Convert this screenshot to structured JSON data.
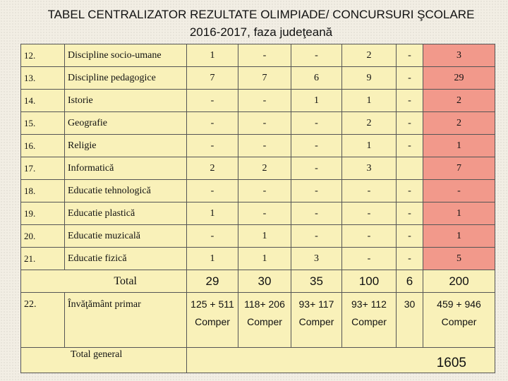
{
  "title": {
    "line1": "TABEL CENTRALIZATOR REZULTATE OLIMPIADE/ CONCURSURI ŞCOLARE",
    "line2": "2016-2017, faza judeţeană"
  },
  "rows": [
    {
      "num": "12.",
      "name": "Discipline socio-umane",
      "c1": "1",
      "c2": "-",
      "c3": "-",
      "c4": "2",
      "c5": "-",
      "c6": "3"
    },
    {
      "num": "13.",
      "name": "Discipline pedagogice",
      "c1": "7",
      "c2": "7",
      "c3": "6",
      "c4": "9",
      "c5": "-",
      "c6": "29"
    },
    {
      "num": "14.",
      "name": "Istorie",
      "c1": "-",
      "c2": "-",
      "c3": "1",
      "c4": "1",
      "c5": "-",
      "c6": "2"
    },
    {
      "num": "15.",
      "name": "Geografie",
      "c1": "-",
      "c2": "-",
      "c3": "-",
      "c4": "2",
      "c5": "-",
      "c6": "2"
    },
    {
      "num": "16.",
      "name": "Religie",
      "c1": "-",
      "c2": "-",
      "c3": "-",
      "c4": "1",
      "c5": "-",
      "c6": "1"
    },
    {
      "num": "17.",
      "name": "Informatică",
      "c1": "2",
      "c2": "2",
      "c3": "-",
      "c4": "3",
      "c5": "",
      "c6": "7"
    },
    {
      "num": "18.",
      "name": "Educatie tehnologică",
      "c1": "-",
      "c2": "-",
      "c3": "-",
      "c4": "-",
      "c5": "-",
      "c6": "-"
    },
    {
      "num": "19.",
      "name": "Educatie plastică",
      "c1": "1",
      "c2": "-",
      "c3": "-",
      "c4": "-",
      "c5": "-",
      "c6": "1"
    },
    {
      "num": "20.",
      "name": "Educatie muzicală",
      "c1": "-",
      "c2": "1",
      "c3": "-",
      "c4": "-",
      "c5": "-",
      "c6": "1"
    },
    {
      "num": "21.",
      "name": "Educatie fizică",
      "c1": "1",
      "c2": "1",
      "c3": "3",
      "c4": "-",
      "c5": "-",
      "c6": "5"
    }
  ],
  "total": {
    "label": "Total",
    "c1": "29",
    "c2": "30",
    "c3": "35",
    "c4": "100",
    "c5": "6",
    "c6": "200"
  },
  "primar": {
    "num": "22.",
    "name": "Învăţământ primar",
    "c1": "125 + 511 Comper",
    "c2": "118+ 206 Comper",
    "c3": "93+ 117 Comper",
    "c4": "93+ 112 Comper",
    "c5": "30",
    "c6": "459 + 946 Comper"
  },
  "grand": {
    "label": "Total general",
    "value": "1605"
  },
  "colors": {
    "cell": "#f9f1b9",
    "highlight": "#f2998b",
    "border": "#555555"
  }
}
